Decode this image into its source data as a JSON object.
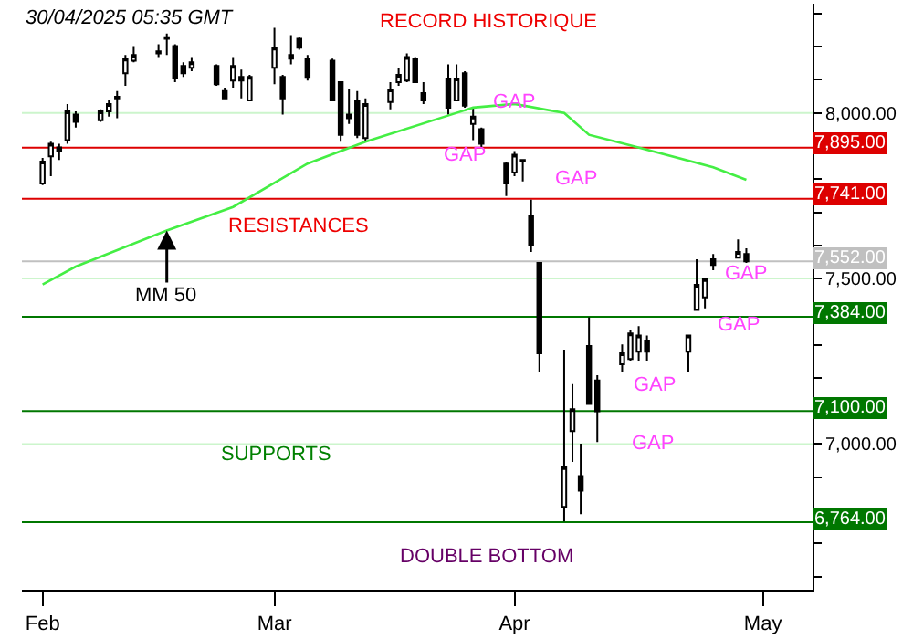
{
  "chart_data": {
    "type": "candlestick",
    "color": "#000000",
    "x": [
      "2025-02-03",
      "2025-02-04",
      "2025-02-05",
      "2025-02-06",
      "2025-02-07",
      "2025-02-10",
      "2025-02-11",
      "2025-02-12",
      "2025-02-13",
      "2025-02-14",
      "2025-02-17",
      "2025-02-18",
      "2025-02-19",
      "2025-02-20",
      "2025-02-21",
      "2025-02-24",
      "2025-02-25",
      "2025-02-26",
      "2025-02-27",
      "2025-02-28",
      "2025-03-03",
      "2025-03-04",
      "2025-03-05",
      "2025-03-06",
      "2025-03-07",
      "2025-03-10",
      "2025-03-11",
      "2025-03-12",
      "2025-03-13",
      "2025-03-14",
      "2025-03-17",
      "2025-03-18",
      "2025-03-19",
      "2025-03-20",
      "2025-03-21",
      "2025-03-24",
      "2025-03-25",
      "2025-03-26",
      "2025-03-27",
      "2025-03-28",
      "2025-03-31",
      "2025-04-01",
      "2025-04-02",
      "2025-04-03",
      "2025-04-04",
      "2025-04-07",
      "2025-04-08",
      "2025-04-09",
      "2025-04-10",
      "2025-04-11",
      "2025-04-14",
      "2025-04-15",
      "2025-04-16",
      "2025-04-17",
      "2025-04-22",
      "2025-04-23",
      "2025-04-24",
      "2025-04-25",
      "2025-04-28",
      "2025-04-29"
    ],
    "ohlc": [
      [
        7787,
        7864,
        7782,
        7853
      ],
      [
        7869,
        7913,
        7809,
        7907
      ],
      [
        7896,
        7907,
        7858,
        7885
      ],
      [
        7918,
        8027,
        7907,
        8005
      ],
      [
        7995,
        8005,
        7956,
        7973
      ],
      [
        7978,
        8011,
        7973,
        8005
      ],
      [
        8005,
        8038,
        7989,
        8027
      ],
      [
        8044,
        8066,
        7984,
        8049
      ],
      [
        8120,
        8175,
        8082,
        8164
      ],
      [
        8158,
        8202,
        8153,
        8175
      ],
      [
        8186,
        8207,
        8169,
        8180
      ],
      [
        8224,
        8240,
        8175,
        8229
      ],
      [
        8202,
        8207,
        8093,
        8104
      ],
      [
        8142,
        8153,
        8109,
        8120
      ],
      [
        8136,
        8169,
        8126,
        8153
      ],
      [
        8142,
        8147,
        8082,
        8087
      ],
      [
        8066,
        8076,
        8044,
        8044
      ],
      [
        8098,
        8169,
        8076,
        8142
      ],
      [
        8109,
        8131,
        8044,
        8098
      ],
      [
        8038,
        8115,
        8038,
        8109
      ],
      [
        8136,
        8257,
        8087,
        8197
      ],
      [
        8109,
        8115,
        7995,
        8044
      ],
      [
        8164,
        8235,
        8147,
        8175
      ],
      [
        8224,
        8229,
        8191,
        8197
      ],
      [
        8164,
        8175,
        8098,
        8109
      ],
      [
        8158,
        8164,
        8038,
        8038
      ],
      [
        8093,
        8093,
        7913,
        7934
      ],
      [
        7995,
        8071,
        7967,
        7984
      ],
      [
        8038,
        8066,
        7924,
        7934
      ],
      [
        7924,
        8044,
        7913,
        8027
      ],
      [
        8033,
        8093,
        8011,
        8071
      ],
      [
        8093,
        8136,
        8082,
        8115
      ],
      [
        8098,
        8180,
        8093,
        8169
      ],
      [
        8164,
        8169,
        8093,
        8093
      ],
      [
        8060,
        8093,
        8027,
        8038
      ],
      [
        8104,
        8147,
        7995,
        8016
      ],
      [
        8038,
        8147,
        8038,
        8104
      ],
      [
        8120,
        8126,
        8016,
        8022
      ],
      [
        7967,
        8016,
        7918,
        7989
      ],
      [
        7951,
        7956,
        7896,
        7907
      ],
      [
        7847,
        7853,
        7749,
        7787
      ],
      [
        7820,
        7885,
        7809,
        7874
      ],
      [
        7858,
        7858,
        7793,
        7853
      ],
      [
        7689,
        7738,
        7580,
        7601
      ],
      [
        7547,
        7547,
        7219,
        7274
      ],
      [
        6810,
        7285,
        6766,
        6930
      ],
      [
        7039,
        7181,
        6946,
        7105
      ],
      [
        6903,
        7001,
        6788,
        6859
      ],
      [
        7296,
        7383,
        7121,
        7121
      ],
      [
        7192,
        7208,
        7006,
        7099
      ],
      [
        7241,
        7301,
        7219,
        7274
      ],
      [
        7257,
        7345,
        7252,
        7334
      ],
      [
        7279,
        7356,
        7252,
        7328
      ],
      [
        7312,
        7328,
        7252,
        7279
      ],
      [
        7279,
        7328,
        7219,
        7328
      ],
      [
        7405,
        7558,
        7405,
        7481
      ],
      [
        7443,
        7498,
        7410,
        7498
      ],
      [
        7558,
        7574,
        7525,
        7541
      ],
      [
        7563,
        7618,
        7563,
        7580
      ],
      [
        7574,
        7591,
        7547,
        7552
      ]
    ],
    "series": [
      {
        "type": "line",
        "color": "#44ee44",
        "x": [
          "2025-02-03",
          "2025-02-07",
          "2025-02-18",
          "2025-02-26",
          "2025-03-07",
          "2025-03-14",
          "2025-03-27",
          "2025-04-01",
          "2025-04-07",
          "2025-04-10",
          "2025-04-15",
          "2025-04-25",
          "2025-04-29"
        ],
        "values": [
          7482,
          7536,
          7645,
          7716,
          7847,
          7913,
          8016,
          8027,
          8000,
          7934,
          7902,
          7836,
          7798
        ]
      }
    ],
    "xlim": [
      "2025-01-31T12:00",
      "2025-05-07"
    ],
    "xticks": [
      {
        "value": "2025-02-03",
        "label": "Feb"
      },
      {
        "value": "2025-03-03",
        "label": "Mar"
      },
      {
        "value": "2025-04-01",
        "label": "Apr"
      },
      {
        "value": "2025-05-01",
        "label": "May"
      }
    ],
    "ylim": [
      6560,
      8330
    ],
    "yticks": [
      {
        "value": 6600,
        "label": null
      },
      {
        "value": 6700,
        "label": null
      },
      {
        "value": 6800,
        "label": null
      },
      {
        "value": 6900,
        "label": null
      },
      {
        "value": 7000,
        "label": "7,000.00"
      },
      {
        "value": 7100,
        "label": null
      },
      {
        "value": 7200,
        "label": null
      },
      {
        "value": 7300,
        "label": null
      },
      {
        "value": 7400,
        "label": null
      },
      {
        "value": 7500,
        "label": "7,500.00"
      },
      {
        "value": 7600,
        "label": null
      },
      {
        "value": 7700,
        "label": null
      },
      {
        "value": 7800,
        "label": null
      },
      {
        "value": 7900,
        "label": null
      },
      {
        "value": 8000,
        "label": "8,000.00"
      },
      {
        "value": 8100,
        "label": null
      },
      {
        "value": 8200,
        "label": null
      },
      {
        "value": 8300,
        "label": null
      }
    ],
    "grid": "y",
    "ref_lines": [
      {
        "axis": "y",
        "value": 7895,
        "label": "7,895.00",
        "color": "#dd0000"
      },
      {
        "axis": "y",
        "value": 7741,
        "label": "7,741.00",
        "color": "#dd0000"
      },
      {
        "axis": "y",
        "value": 7552,
        "label": "7,552.00",
        "color": "#c0c0c0"
      },
      {
        "axis": "y",
        "value": 7384,
        "label": "7,384.00",
        "color": "#007700"
      },
      {
        "axis": "y",
        "value": 7100,
        "label": "7,100.00",
        "color": "#007700"
      },
      {
        "axis": "y",
        "value": 6764,
        "label": "6,764.00",
        "color": "#007700"
      }
    ],
    "annotations": [
      "30/04/2025 05:35 GMT",
      "RECORD HISTORIQUE",
      "RESISTANCES",
      "SUPPORTS",
      "DOUBLE BOTTOM",
      {
        "text": "MM 50",
        "x": "2025-02-18",
        "y": 7645
      },
      {
        "text": "GAP",
        "x": "2025-04-01",
        "y": 8035
      },
      {
        "text": "GAP",
        "x": "2025-03-26",
        "y": 7874
      },
      "GAP",
      "GAP",
      {
        "text": "GAP",
        "x": "2025-04-28",
        "y": 7360
      },
      "GAP",
      "GAP"
    ]
  }
}
